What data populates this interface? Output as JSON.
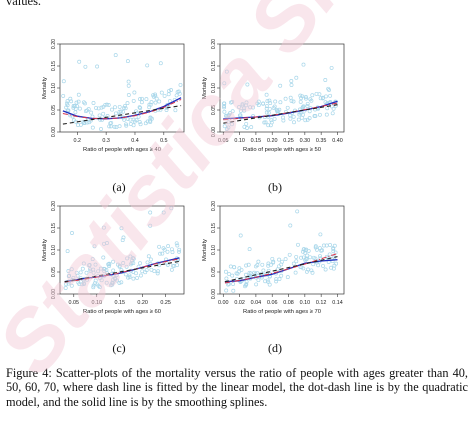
{
  "page": {
    "top_text": "values.",
    "caption": "Figure 4: Scatter-plots of the mortality versus the ratio of people with ages greater than 40, 50, 60, 70, where dash line is fitted by the linear model, the dot-dash line is by the quadratic model, and the solid line is by the smoothing splines.",
    "watermark_text": "Statistica Sinica"
  },
  "colors": {
    "points": "#a9d7ea",
    "smoothing_spline": "#1f2fbf",
    "quadratic": "#d8324a",
    "linear": "#222222",
    "watermark": "#f2c8d4"
  },
  "chart_data": [
    {
      "type": "scatter",
      "panel_label": "(a)",
      "xlabel": "Ratio of people with ages ≥ 40",
      "ylabel": "Mortality",
      "x_ticks": [
        "0.2",
        "0.3",
        "0.4",
        "0.5"
      ],
      "y_ticks": [
        "0.00",
        "0.05",
        "0.10",
        "0.15",
        "0.20"
      ],
      "xlim": [
        0.14,
        0.57
      ],
      "ylim": [
        0.0,
        0.2
      ],
      "series": [
        {
          "style": "solid",
          "x": [
            0.15,
            0.2,
            0.25,
            0.3,
            0.35,
            0.4,
            0.45,
            0.5,
            0.56
          ],
          "y": [
            0.048,
            0.036,
            0.031,
            0.03,
            0.032,
            0.038,
            0.046,
            0.058,
            0.078
          ]
        },
        {
          "style": "dot-dash",
          "x": [
            0.15,
            0.2,
            0.25,
            0.3,
            0.35,
            0.4,
            0.45,
            0.5,
            0.56
          ],
          "y": [
            0.042,
            0.035,
            0.031,
            0.03,
            0.032,
            0.037,
            0.045,
            0.056,
            0.074
          ]
        },
        {
          "style": "dash",
          "x": [
            0.15,
            0.56
          ],
          "y": [
            0.018,
            0.06
          ]
        }
      ]
    },
    {
      "type": "scatter",
      "panel_label": "(b)",
      "xlabel": "Ratio of people with ages ≥ 50",
      "ylabel": "Mortality",
      "x_ticks": [
        "0.05",
        "0.10",
        "0.15",
        "0.20",
        "0.25",
        "0.30",
        "0.35",
        "0.40"
      ],
      "y_ticks": [
        "0.00",
        "0.05",
        "0.10",
        "0.15",
        "0.20"
      ],
      "xlim": [
        0.04,
        0.42
      ],
      "ylim": [
        0.0,
        0.2
      ],
      "series": [
        {
          "style": "solid",
          "x": [
            0.05,
            0.1,
            0.15,
            0.2,
            0.25,
            0.3,
            0.35,
            0.4
          ],
          "y": [
            0.03,
            0.032,
            0.034,
            0.037,
            0.043,
            0.05,
            0.058,
            0.07
          ]
        },
        {
          "style": "dot-dash",
          "x": [
            0.05,
            0.1,
            0.15,
            0.2,
            0.25,
            0.3,
            0.35,
            0.4
          ],
          "y": [
            0.028,
            0.031,
            0.034,
            0.038,
            0.044,
            0.051,
            0.058,
            0.066
          ]
        },
        {
          "style": "dash",
          "x": [
            0.05,
            0.4
          ],
          "y": [
            0.02,
            0.062
          ]
        }
      ]
    },
    {
      "type": "scatter",
      "panel_label": "(c)",
      "xlabel": "Ratio of people with ages ≥ 60",
      "ylabel": "Mortality",
      "x_ticks": [
        "0.05",
        "0.10",
        "0.15",
        "0.20",
        "0.25"
      ],
      "y_ticks": [
        "0.00",
        "0.05",
        "0.10",
        "0.15",
        "0.20"
      ],
      "xlim": [
        0.02,
        0.29
      ],
      "ylim": [
        0.0,
        0.2
      ],
      "series": [
        {
          "style": "solid",
          "x": [
            0.03,
            0.07,
            0.11,
            0.15,
            0.19,
            0.23,
            0.28
          ],
          "y": [
            0.028,
            0.035,
            0.04,
            0.047,
            0.058,
            0.07,
            0.082
          ]
        },
        {
          "style": "dot-dash",
          "x": [
            0.03,
            0.07,
            0.11,
            0.15,
            0.19,
            0.23,
            0.28
          ],
          "y": [
            0.027,
            0.033,
            0.04,
            0.048,
            0.058,
            0.069,
            0.08
          ]
        },
        {
          "style": "dash",
          "x": [
            0.03,
            0.28
          ],
          "y": [
            0.028,
            0.074
          ]
        }
      ]
    },
    {
      "type": "scatter",
      "panel_label": "(d)",
      "xlabel": "Ratio of people with ages ≥ 70",
      "ylabel": "Mortality",
      "x_ticks": [
        "0.00",
        "0.02",
        "0.04",
        "0.06",
        "0.08",
        "0.10",
        "0.12",
        "0.14"
      ],
      "y_ticks": [
        "0.00",
        "0.05",
        "0.10",
        "0.15",
        "0.20"
      ],
      "xlim": [
        -0.004,
        0.148
      ],
      "ylim": [
        0.0,
        0.2
      ],
      "series": [
        {
          "style": "solid",
          "x": [
            0.002,
            0.02,
            0.04,
            0.06,
            0.08,
            0.1,
            0.12,
            0.14
          ],
          "y": [
            0.028,
            0.03,
            0.038,
            0.045,
            0.057,
            0.07,
            0.075,
            0.078
          ]
        },
        {
          "style": "dot-dash",
          "x": [
            0.002,
            0.02,
            0.04,
            0.06,
            0.08,
            0.1,
            0.12,
            0.14
          ],
          "y": [
            0.025,
            0.031,
            0.038,
            0.047,
            0.057,
            0.068,
            0.08,
            0.092
          ]
        },
        {
          "style": "dash",
          "x": [
            0.002,
            0.14
          ],
          "y": [
            0.028,
            0.085
          ]
        }
      ]
    }
  ]
}
